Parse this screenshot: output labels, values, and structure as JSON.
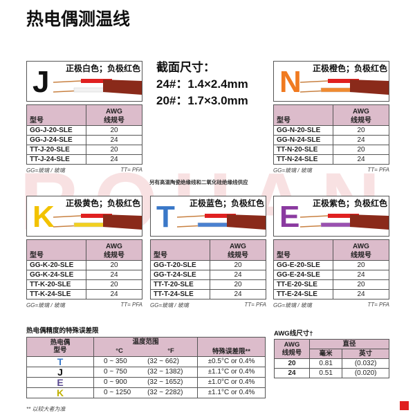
{
  "title": "热电偶测温线",
  "watermark": "ROHAN",
  "size_info": {
    "heading": "截面尺寸：",
    "line1": "24#：1.4×2.4mm",
    "line2": "20#：1.7×3.0mm"
  },
  "supply_note": "另有高温陶瓷绝缘线和二氧化硅绝缘线供应",
  "cards": [
    {
      "letter": "J",
      "letter_color": "#111111",
      "label": "正极白色；负极红色",
      "pos_color": "#f2f2f2",
      "neg_color": "#e02020",
      "header_model": "型号",
      "header_awg1": "AWG",
      "header_awg2": "线规号",
      "rows": [
        [
          "GG-J-20-SLE",
          "20"
        ],
        [
          "GG-J-24-SLE",
          "24"
        ],
        [
          "TT-J-20-SLE",
          "20"
        ],
        [
          "TT-J-24-SLE",
          "24"
        ]
      ],
      "foot_left": "GG=玻璃 / 玻璃",
      "foot_right": "TT= PFA"
    },
    {
      "letter": "N",
      "letter_color": "#f07a20",
      "label": "正极橙色；负极红色",
      "pos_color": "#f08a30",
      "neg_color": "#e02020",
      "header_model": "型号",
      "header_awg1": "AWG",
      "header_awg2": "线规号",
      "rows": [
        [
          "GG-N-20-SLE",
          "20"
        ],
        [
          "GG-N-24-SLE",
          "24"
        ],
        [
          "TT-N-20-SLE",
          "20"
        ],
        [
          "TT-N-24-SLE",
          "24"
        ]
      ],
      "foot_left": "GG=玻璃 / 玻璃",
      "foot_right": "TT= PFA"
    },
    {
      "letter": "K",
      "letter_color": "#f2c200",
      "label": "正极黄色；负极红色",
      "pos_color": "#f2d020",
      "neg_color": "#e02020",
      "header_model": "型号",
      "header_awg1": "AWG",
      "header_awg2": "线规号",
      "rows": [
        [
          "GG-K-20-SLE",
          "20"
        ],
        [
          "GG-K-24-SLE",
          "24"
        ],
        [
          "TT-K-20-SLE",
          "20"
        ],
        [
          "TT-K-24-SLE",
          "24"
        ]
      ],
      "foot_left": "GG=玻璃 / 玻璃",
      "foot_right": "TT= PFA"
    },
    {
      "letter": "T",
      "letter_color": "#3a78c8",
      "label": "正极蓝色；负极红色",
      "pos_color": "#4a80d0",
      "neg_color": "#e02020",
      "header_model": "型号",
      "header_awg1": "AWG",
      "header_awg2": "线规号",
      "rows": [
        [
          "GG-T-20-SLE",
          "20"
        ],
        [
          "GG-T-24-SLE",
          "24"
        ],
        [
          "TT-T-20-SLE",
          "20"
        ],
        [
          "TT-T-24-SLE",
          "24"
        ]
      ],
      "foot_left": "GG=玻璃 / 玻璃",
      "foot_right": "TT= PFA"
    },
    {
      "letter": "E",
      "letter_color": "#8a3aa0",
      "label": "正极紫色；负极红色",
      "pos_color": "#9a50b0",
      "neg_color": "#e02020",
      "header_model": "型号",
      "header_awg1": "AWG",
      "header_awg2": "线规号",
      "rows": [
        [
          "GG-E-20-SLE",
          "20"
        ],
        [
          "GG-E-24-SLE",
          "24"
        ],
        [
          "TT-E-20-SLE",
          "20"
        ],
        [
          "TT-E-24-SLE",
          "24"
        ]
      ],
      "foot_left": "GG=玻璃 / 玻璃",
      "foot_right": "TT= PFA"
    }
  ],
  "tolerance": {
    "heading": "热电偶精度的特殊误差限",
    "h_type1": "热电偶",
    "h_type2": "型号",
    "h_range": "温度范围",
    "h_c": "°C",
    "h_f": "°F",
    "h_tol": "特殊误差限**",
    "rows": [
      {
        "type": "T",
        "color": "#3a78c8",
        "c": "0 ~ 350",
        "f": "(32 ~ 662)",
        "tol": "±0.5°C or 0.4%"
      },
      {
        "type": "J",
        "color": "#111111",
        "c": "0 ~ 750",
        "f": "(32 ~ 1382)",
        "tol": "±1.1°C or 0.4%"
      },
      {
        "type": "E",
        "color": "#5a4a90",
        "c": "0 ~ 900",
        "f": "(32 ~ 1652)",
        "tol": "±1.0°C or 0.4%"
      },
      {
        "type": "K",
        "color": "#c0b000",
        "c": "0 ~ 1250",
        "f": "(32 ~ 2282)",
        "tol": "±1.1°C or 0.4%"
      }
    ],
    "footnote": "** 以较大者为准"
  },
  "awg": {
    "heading": "AWG线尺寸†",
    "h_awg1": "AWG",
    "h_awg2": "线规号",
    "h_dia": "直径",
    "h_mm": "毫米",
    "h_in": "英寸",
    "rows": [
      [
        "20",
        "0.81",
        "(0.032)"
      ],
      [
        "24",
        "0.51",
        "(0.020)"
      ]
    ]
  },
  "logo": "R"
}
